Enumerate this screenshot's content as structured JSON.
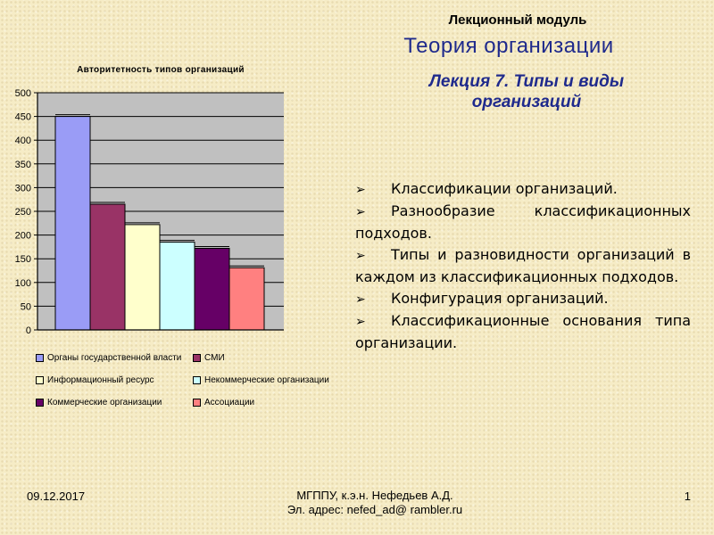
{
  "header": {
    "module_label": "Лекционный модуль",
    "course_title": "Теория организации",
    "lecture_title_line1": "Лекция 7. Типы и виды",
    "lecture_title_line2": "организаций"
  },
  "chart_data": {
    "type": "bar",
    "title": "Авторитетность типов организаций",
    "categories": [
      "Органы государственной власти",
      "СМИ",
      "Информационный ресурс",
      "Некоммерческие организации",
      "Коммерческие организации",
      "Ассоциации"
    ],
    "values": [
      450,
      265,
      222,
      185,
      172,
      131
    ],
    "colors": [
      "#9a9cf6",
      "#993366",
      "#ffffcc",
      "#ccffff",
      "#660066",
      "#ff8080"
    ],
    "ylim": [
      0,
      500
    ],
    "yticks": [
      0,
      50,
      100,
      150,
      200,
      250,
      300,
      350,
      400,
      450,
      500
    ],
    "grid": true,
    "legend_position": "bottom",
    "plot_background": "#c0c0c0"
  },
  "bullets": [
    "Классификации организаций.",
    "Разнообразие классификационных подходов.",
    "Типы и разновидности организаций в каждом из классификационных подходов.",
    "Конфигурация организаций.",
    "Классификационные основания типа организации."
  ],
  "footer": {
    "date": "09.12.2017",
    "author": "МГППУ, к.э.н. Нефедьев А.Д.",
    "email": "Эл. адрес: nefed_ad@ rambler.ru",
    "page": "1"
  }
}
